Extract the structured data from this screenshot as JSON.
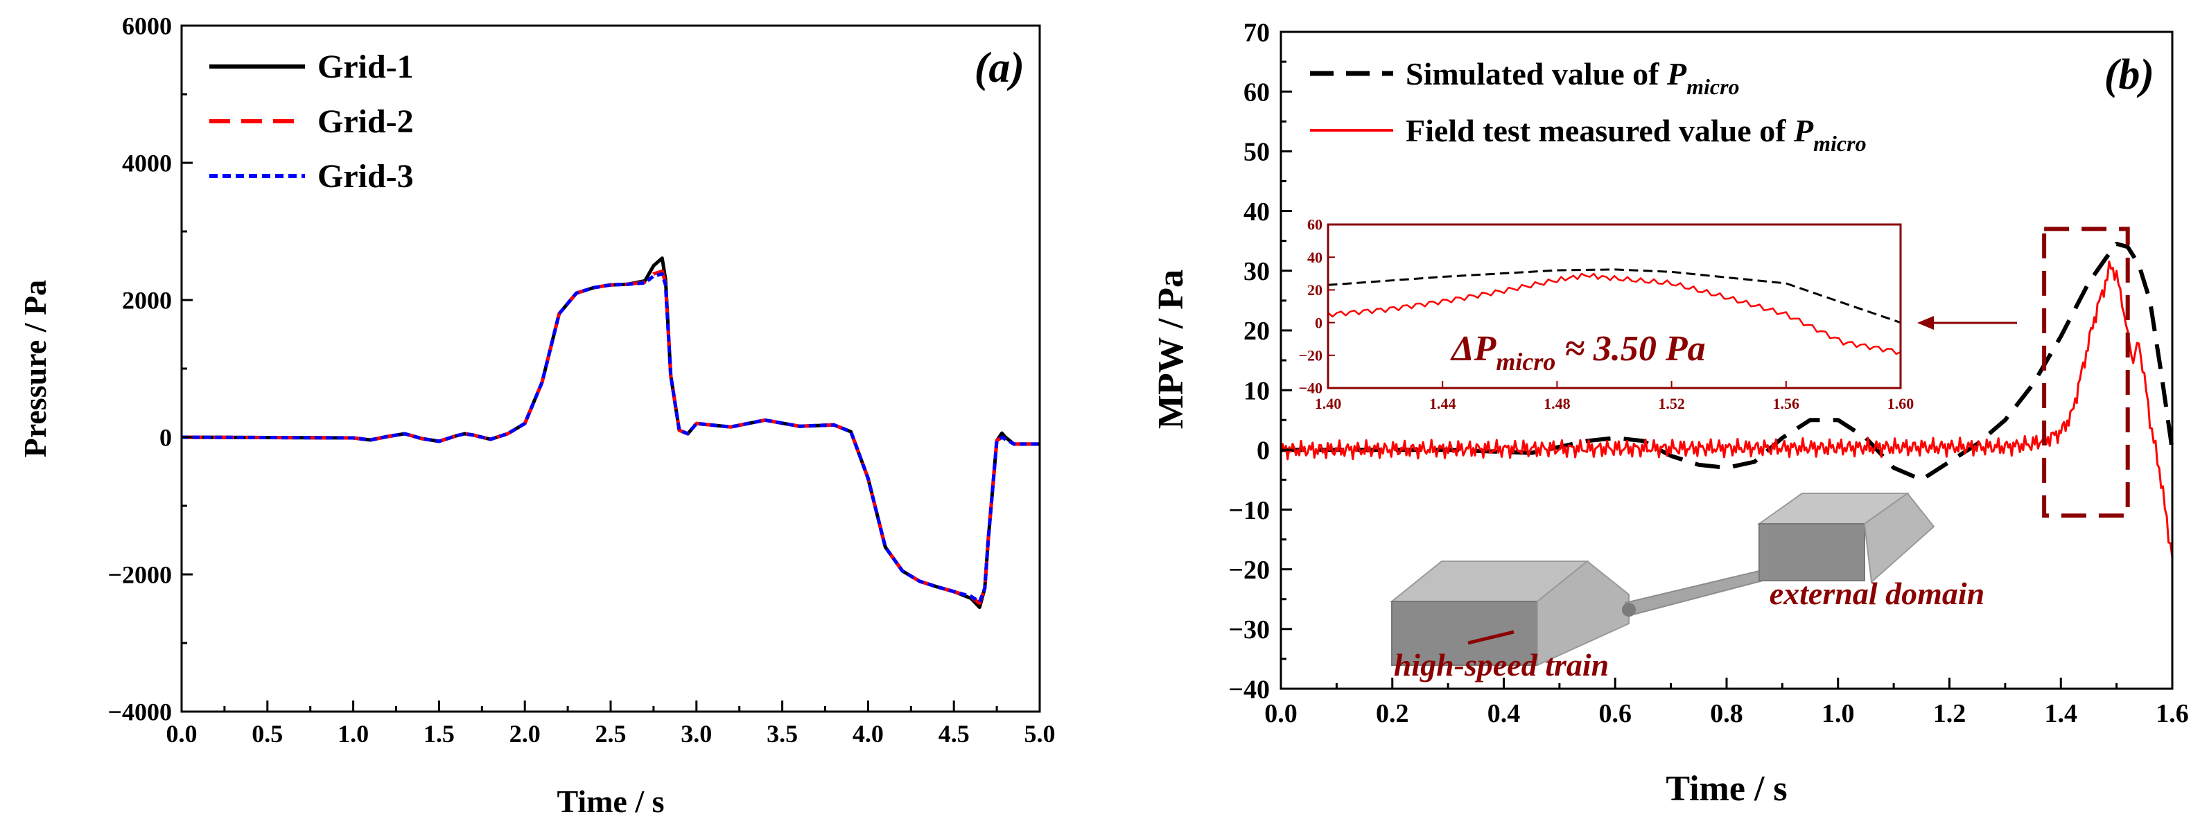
{
  "figure": {
    "background": "#ffffff"
  },
  "chart_data": [
    {
      "panel": "(a)",
      "type": "line",
      "xlabel": "Time / s",
      "ylabel": "Pressure / Pa",
      "xlim": [
        0,
        5
      ],
      "ylim": [
        -4000,
        6000
      ],
      "x_ticks": [
        0,
        0.5,
        1,
        1.5,
        2,
        2.5,
        3,
        3.5,
        4,
        4.5,
        5
      ],
      "x_tick_labels": [
        "0.0",
        "0.5",
        "1.0",
        "1.5",
        "2.0",
        "2.5",
        "3.0",
        "3.5",
        "4.0",
        "4.5",
        "5.0"
      ],
      "y_ticks": [
        -4000,
        -2000,
        0,
        2000,
        4000,
        6000
      ],
      "y_tick_labels": [
        "−4000",
        "−2000",
        "0",
        "2000",
        "4000",
        "6000"
      ],
      "grid": false,
      "legend": {
        "placement": "top-left",
        "entries": [
          "Grid-1",
          "Grid-2",
          "Grid-3"
        ]
      },
      "series": [
        {
          "name": "Grid-1",
          "color": "#000000",
          "dash": "solid",
          "x": [
            0,
            1.0,
            1.1,
            1.2,
            1.3,
            1.4,
            1.5,
            1.6,
            1.65,
            1.7,
            1.8,
            1.9,
            2.0,
            2.1,
            2.2,
            2.3,
            2.4,
            2.5,
            2.6,
            2.7,
            2.75,
            2.8,
            2.82,
            2.85,
            2.9,
            2.95,
            3.0,
            3.2,
            3.4,
            3.6,
            3.8,
            3.9,
            4.0,
            4.1,
            4.2,
            4.3,
            4.4,
            4.5,
            4.6,
            4.65,
            4.68,
            4.7,
            4.75,
            4.78,
            4.8,
            4.85,
            5.0
          ],
          "y": [
            0,
            -10,
            -40,
            10,
            50,
            -20,
            -60,
            20,
            50,
            30,
            -30,
            50,
            200,
            800,
            1800,
            2100,
            2180,
            2220,
            2230,
            2280,
            2500,
            2610,
            2300,
            900,
            100,
            50,
            200,
            150,
            250,
            160,
            180,
            80,
            -600,
            -1600,
            -1950,
            -2100,
            -2180,
            -2250,
            -2350,
            -2480,
            -2200,
            -1500,
            -50,
            60,
            0,
            -100,
            -100
          ]
        },
        {
          "name": "Grid-2",
          "color": "#ff0000",
          "dash": "dashed",
          "x": [
            0,
            1.0,
            1.1,
            1.2,
            1.3,
            1.4,
            1.5,
            1.6,
            1.65,
            1.7,
            1.8,
            1.9,
            2.0,
            2.1,
            2.2,
            2.3,
            2.4,
            2.5,
            2.6,
            2.7,
            2.75,
            2.8,
            2.82,
            2.85,
            2.9,
            2.95,
            3.0,
            3.2,
            3.4,
            3.6,
            3.8,
            3.9,
            4.0,
            4.1,
            4.2,
            4.3,
            4.4,
            4.5,
            4.6,
            4.65,
            4.68,
            4.7,
            4.75,
            4.78,
            4.8,
            4.85,
            5.0
          ],
          "y": [
            0,
            -10,
            -40,
            10,
            50,
            -20,
            -60,
            20,
            50,
            30,
            -30,
            50,
            200,
            800,
            1800,
            2100,
            2180,
            2220,
            2230,
            2260,
            2380,
            2420,
            2250,
            900,
            100,
            50,
            200,
            150,
            250,
            160,
            180,
            80,
            -600,
            -1600,
            -1950,
            -2100,
            -2180,
            -2250,
            -2330,
            -2420,
            -2200,
            -1500,
            -50,
            0,
            -20,
            -100,
            -100
          ]
        },
        {
          "name": "Grid-3",
          "color": "#0000ff",
          "dash": "dotted",
          "x": [
            0,
            1.0,
            1.1,
            1.2,
            1.3,
            1.4,
            1.5,
            1.6,
            1.65,
            1.7,
            1.8,
            1.9,
            2.0,
            2.1,
            2.2,
            2.3,
            2.4,
            2.5,
            2.6,
            2.7,
            2.75,
            2.8,
            2.82,
            2.85,
            2.9,
            2.95,
            3.0,
            3.2,
            3.4,
            3.6,
            3.8,
            3.9,
            4.0,
            4.1,
            4.2,
            4.3,
            4.4,
            4.5,
            4.6,
            4.65,
            4.68,
            4.7,
            4.75,
            4.78,
            4.8,
            4.85,
            5.0
          ],
          "y": [
            0,
            -10,
            -40,
            10,
            50,
            -20,
            -60,
            20,
            50,
            30,
            -30,
            50,
            200,
            800,
            1800,
            2100,
            2180,
            2220,
            2230,
            2250,
            2350,
            2380,
            2220,
            900,
            100,
            50,
            200,
            150,
            250,
            160,
            180,
            80,
            -600,
            -1600,
            -1950,
            -2100,
            -2180,
            -2250,
            -2320,
            -2400,
            -2200,
            -1500,
            -50,
            0,
            -30,
            -100,
            -100
          ]
        }
      ]
    },
    {
      "panel": "(b)",
      "type": "line",
      "xlabel": "Time / s",
      "ylabel": "MPW / Pa",
      "xlim": [
        0,
        1.6
      ],
      "ylim": [
        -40,
        70
      ],
      "x_ticks": [
        0,
        0.2,
        0.4,
        0.6,
        0.8,
        1.0,
        1.2,
        1.4,
        1.6
      ],
      "x_tick_labels": [
        "0.0",
        "0.2",
        "0.4",
        "0.6",
        "0.8",
        "1.0",
        "1.2",
        "1.4",
        "1.6"
      ],
      "y_ticks": [
        -40,
        -30,
        -20,
        -10,
        0,
        10,
        20,
        30,
        40,
        50,
        60,
        70
      ],
      "y_tick_labels": [
        "−40",
        "−30",
        "−20",
        "−10",
        "0",
        "10",
        "20",
        "30",
        "40",
        "50",
        "60",
        "70"
      ],
      "grid": false,
      "legend": {
        "placement": "top-left",
        "entries": [
          {
            "text": "Simulated value of ",
            "symbol": "P",
            "subscript": "micro"
          },
          {
            "text": "Field test measured value of ",
            "symbol": "P",
            "subscript": "micro"
          }
        ]
      },
      "series": [
        {
          "name": "Simulated value of P_micro",
          "color": "#000000",
          "dash": "dashed",
          "x": [
            0,
            0.3,
            0.45,
            0.55,
            0.6,
            0.65,
            0.7,
            0.75,
            0.8,
            0.85,
            0.9,
            0.95,
            1.0,
            1.05,
            1.1,
            1.15,
            1.2,
            1.25,
            1.3,
            1.35,
            1.4,
            1.45,
            1.48,
            1.5,
            1.52,
            1.54,
            1.56,
            1.58,
            1.6
          ],
          "y": [
            0,
            0,
            -0.5,
            1.5,
            2,
            1.5,
            -1,
            -2.5,
            -3,
            -2,
            2,
            5,
            5,
            2,
            -3,
            -5,
            -2,
            1,
            5,
            11,
            19,
            28,
            32,
            34.5,
            34,
            31,
            25,
            13,
            0
          ]
        },
        {
          "name": "Field test measured value of P_micro",
          "color": "#ff0000",
          "dash": "solid",
          "x": [
            0,
            1.3,
            1.35,
            1.38,
            1.4,
            1.42,
            1.44,
            1.46,
            1.48,
            1.49,
            1.5,
            1.51,
            1.52,
            1.53,
            1.54,
            1.55,
            1.56,
            1.57,
            1.58,
            1.59,
            1.6
          ],
          "y": [
            0,
            0.5,
            1,
            2,
            3,
            6,
            14,
            22,
            28,
            31,
            29,
            25,
            19,
            15,
            18,
            12,
            5,
            0,
            -5,
            -12,
            -18
          ]
        }
      ],
      "annotations": {
        "label": "(b)",
        "rectangle_region": {
          "x": [
            1.37,
            1.52
          ],
          "y": [
            -11,
            37
          ]
        }
      },
      "inset": {
        "type": "line",
        "xlim": [
          1.4,
          1.6
        ],
        "ylim": [
          -40,
          60
        ],
        "x_ticks": [
          1.4,
          1.44,
          1.48,
          1.52,
          1.56,
          1.6
        ],
        "x_tick_labels": [
          "1.40",
          "1.44",
          "1.48",
          "1.52",
          "1.56",
          "1.60"
        ],
        "y_ticks": [
          -40,
          -20,
          0,
          20,
          40,
          60
        ],
        "y_tick_labels": [
          "−40",
          "−20",
          "0",
          "20",
          "40",
          "60"
        ],
        "annotation": {
          "prefix": "ΔP",
          "subscript": "micro",
          "suffix": " ≈ 3.50 Pa"
        },
        "series": [
          {
            "color": "#000000",
            "dash": "dashed",
            "x": [
              1.4,
              1.44,
              1.48,
              1.5,
              1.52,
              1.56,
              1.6
            ],
            "y": [
              23,
              28,
              32,
              32.5,
              31,
              24,
              0
            ]
          },
          {
            "color": "#ff0000",
            "dash": "solid",
            "x": [
              1.4,
              1.42,
              1.44,
              1.46,
              1.48,
              1.49,
              1.5,
              1.52,
              1.54,
              1.56,
              1.58,
              1.6
            ],
            "y": [
              5,
              8,
              13,
              19,
              26,
              29,
              27,
              24,
              15,
              5,
              -12,
              -18
            ]
          }
        ]
      },
      "model_labels": {
        "high_speed_train": "high-speed train",
        "external_domain": "external domain"
      }
    }
  ]
}
